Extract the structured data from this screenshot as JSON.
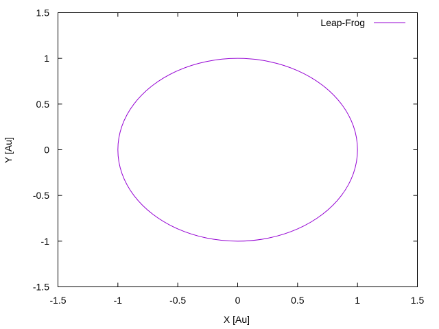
{
  "chart_data": {
    "type": "line",
    "xlabel": "X [Au]",
    "ylabel": "Y [Au]",
    "xlim": [
      -1.5,
      1.5
    ],
    "ylim": [
      -1.5,
      1.5
    ],
    "xticks": [
      -1.5,
      -1,
      -0.5,
      0,
      0.5,
      1,
      1.5
    ],
    "xtick_labels": [
      "-1.5",
      "-1",
      "-0.5",
      "0",
      "0.5",
      "1",
      "1.5"
    ],
    "yticks": [
      -1.5,
      -1,
      -0.5,
      0,
      0.5,
      1,
      1.5
    ],
    "ytick_labels": [
      "-1.5",
      "-1",
      "-0.5",
      "0",
      "0.5",
      "1",
      "1.5"
    ],
    "grid": false,
    "legend": "top-right",
    "series": [
      {
        "name": "Leap-Frog",
        "color": "#9400d3",
        "x": [
          1,
          0.966,
          0.866,
          0.707,
          0.5,
          0.259,
          0,
          -0.259,
          -0.5,
          -0.707,
          -0.866,
          -0.966,
          -1,
          -0.966,
          -0.866,
          -0.707,
          -0.5,
          -0.259,
          0,
          0.259,
          0.5,
          0.707,
          0.866,
          0.966,
          1
        ],
        "y": [
          0,
          0.259,
          0.5,
          0.707,
          0.866,
          0.966,
          1,
          0.966,
          0.866,
          0.707,
          0.5,
          0.259,
          0,
          -0.259,
          -0.5,
          -0.707,
          -0.866,
          -0.966,
          -1,
          -0.966,
          -0.866,
          -0.707,
          -0.5,
          -0.259,
          0
        ]
      }
    ]
  }
}
